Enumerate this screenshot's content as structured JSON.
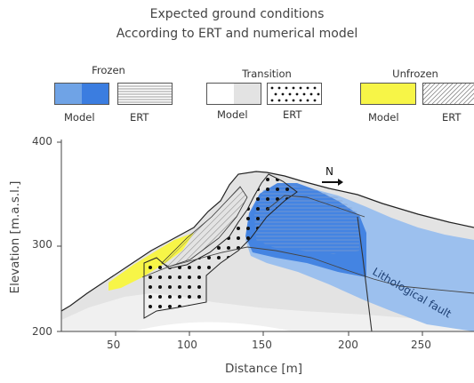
{
  "title_line1": "Expected ground conditions",
  "title_line2": "According to ERT and numerical model",
  "legend": {
    "frozen": {
      "label": "Frozen",
      "model": "Model",
      "ert": "ERT"
    },
    "transition": {
      "label": "Transition",
      "model": "Model",
      "ert": "ERT"
    },
    "unfrozen": {
      "label": "Unfrozen",
      "model": "Model",
      "ert": "ERT"
    }
  },
  "axes": {
    "xlabel": "Distance [m]",
    "ylabel": "Elevation [m.a.s.l.]",
    "xticks": [
      "50",
      "100",
      "150",
      "200",
      "250"
    ],
    "yticks": [
      "400",
      "300",
      "200"
    ],
    "xrange": [
      15,
      282
    ],
    "yrange": [
      200,
      400
    ]
  },
  "annotations": {
    "north": "N",
    "fault": "Lithological fault"
  },
  "colors": {
    "frozen_model_light": "#6fa3e6",
    "frozen_model_dark": "#3b7de0",
    "unfrozen_model": "#f7f547",
    "ground": "#e3e3e3",
    "ground_light": "#f0f0f0"
  }
}
